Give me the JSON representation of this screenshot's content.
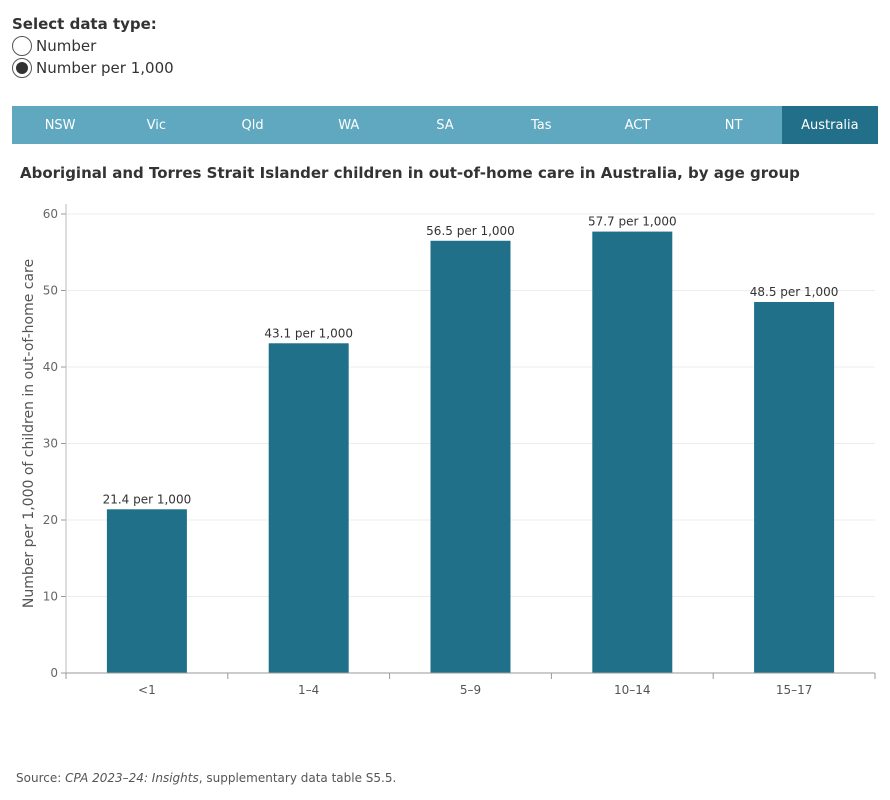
{
  "data_type": {
    "label": "Select data type:",
    "options": [
      {
        "label": "Number",
        "selected": false
      },
      {
        "label": "Number per 1,000",
        "selected": true
      }
    ]
  },
  "tabs": [
    {
      "label": "NSW",
      "active": false
    },
    {
      "label": "Vic",
      "active": false
    },
    {
      "label": "Qld",
      "active": false
    },
    {
      "label": "WA",
      "active": false
    },
    {
      "label": "SA",
      "active": false
    },
    {
      "label": "Tas",
      "active": false
    },
    {
      "label": "ACT",
      "active": false
    },
    {
      "label": "NT",
      "active": false
    },
    {
      "label": "Australia",
      "active": true
    }
  ],
  "colors": {
    "tab_bar": "#5fa8c0",
    "tab_active": "#216f89",
    "bar": "#21708a"
  },
  "chart_data": {
    "type": "bar",
    "title": "Aboriginal and Torres Strait Islander children in out-of-home care in Australia, by age group",
    "xlabel": "",
    "ylabel": "Number per 1,000 of children in out-of-home care",
    "categories": [
      "<1",
      "1–4",
      "5–9",
      "10–14",
      "15–17"
    ],
    "values": [
      21.4,
      43.1,
      56.5,
      57.7,
      48.5
    ],
    "data_labels": [
      "21.4 per 1,000",
      "43.1 per 1,000",
      "56.5 per 1,000",
      "57.7 per 1,000",
      "48.5 per 1,000"
    ],
    "ylim": [
      0,
      60
    ],
    "yticks": [
      0,
      10,
      20,
      30,
      40,
      50,
      60
    ],
    "grid": true
  },
  "source": {
    "prefix": "Source:",
    "title": "CPA 2023–24: Insights",
    "suffix": ", supplementary data table S5.5."
  }
}
